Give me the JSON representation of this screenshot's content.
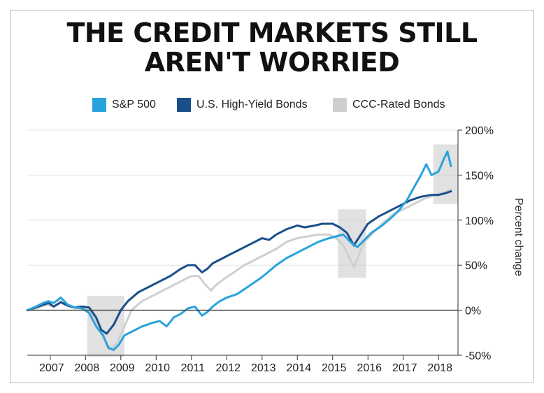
{
  "chart_data": {
    "type": "line",
    "title": "THE CREDIT MARKETS STILL\nAREN'T WORRIED",
    "ylabel": "Percent change",
    "xlabel": "",
    "xlim": [
      2006.35,
      2018.55
    ],
    "ylim": [
      -50,
      200
    ],
    "x_ticks": [
      2007,
      2008,
      2009,
      2010,
      2011,
      2012,
      2013,
      2014,
      2015,
      2016,
      2017,
      2018
    ],
    "x_tick_labels": [
      "2007",
      "2008",
      "2009",
      "2010",
      "2011",
      "2012",
      "2013",
      "2014",
      "2015",
      "2016",
      "2017",
      "2018"
    ],
    "y_ticks": [
      -50,
      0,
      50,
      100,
      150,
      200
    ],
    "y_tick_labels": [
      "-50%",
      "0%",
      "50%",
      "100%",
      "150%",
      "200%"
    ],
    "legend_placement": "top-center",
    "grid": "horizontal",
    "zero_line": true,
    "series": [
      {
        "name": "S&P 500",
        "color": "#29a3dc",
        "x": [
          2006.35,
          2006.6,
          2006.8,
          2006.95,
          2007.1,
          2007.3,
          2007.5,
          2007.7,
          2007.9,
          2008.1,
          2008.3,
          2008.5,
          2008.65,
          2008.8,
          2008.95,
          2009.1,
          2009.3,
          2009.6,
          2009.9,
          2010.1,
          2010.3,
          2010.5,
          2010.7,
          2010.9,
          2011.1,
          2011.3,
          2011.45,
          2011.6,
          2011.8,
          2012.0,
          2012.3,
          2012.6,
          2012.9,
          2013.1,
          2013.4,
          2013.7,
          2014.0,
          2014.3,
          2014.6,
          2014.9,
          2015.1,
          2015.3,
          2015.55,
          2015.7,
          2015.9,
          2016.1,
          2016.4,
          2016.7,
          2016.9,
          2017.1,
          2017.3,
          2017.5,
          2017.65,
          2017.8,
          2018.0,
          2018.15,
          2018.25,
          2018.35
        ],
        "y": [
          0,
          4,
          8,
          10,
          8,
          14,
          6,
          3,
          2,
          -3,
          -18,
          -28,
          -42,
          -44,
          -38,
          -28,
          -24,
          -18,
          -14,
          -12,
          -18,
          -8,
          -4,
          2,
          4,
          -6,
          -2,
          4,
          10,
          14,
          18,
          26,
          34,
          40,
          50,
          58,
          64,
          70,
          76,
          80,
          82,
          84,
          74,
          70,
          78,
          86,
          94,
          104,
          112,
          122,
          136,
          150,
          162,
          150,
          154,
          168,
          176,
          160
        ]
      },
      {
        "name": "U.S. High-Yield Bonds",
        "color": "#1b4f8a",
        "x": [
          2006.35,
          2006.6,
          2006.8,
          2006.95,
          2007.1,
          2007.3,
          2007.5,
          2007.7,
          2007.9,
          2008.1,
          2008.3,
          2008.45,
          2008.6,
          2008.8,
          2009.0,
          2009.2,
          2009.5,
          2009.8,
          2010.1,
          2010.4,
          2010.7,
          2010.9,
          2011.1,
          2011.3,
          2011.45,
          2011.6,
          2011.8,
          2012.1,
          2012.4,
          2012.7,
          2013.0,
          2013.2,
          2013.4,
          2013.7,
          2014.0,
          2014.2,
          2014.5,
          2014.7,
          2015.0,
          2015.2,
          2015.4,
          2015.6,
          2015.8,
          2016.0,
          2016.3,
          2016.6,
          2016.9,
          2017.2,
          2017.5,
          2017.8,
          2018.0,
          2018.2,
          2018.35
        ],
        "y": [
          0,
          3,
          6,
          8,
          4,
          9,
          5,
          3,
          4,
          3,
          -8,
          -22,
          -26,
          -16,
          0,
          10,
          20,
          26,
          32,
          38,
          46,
          50,
          50,
          42,
          46,
          52,
          56,
          62,
          68,
          74,
          80,
          78,
          84,
          90,
          94,
          92,
          94,
          96,
          96,
          92,
          86,
          72,
          84,
          96,
          104,
          110,
          116,
          122,
          126,
          128,
          128,
          130,
          132
        ]
      },
      {
        "name": "CCC-Rated Bonds",
        "color": "#cfcfcf",
        "x": [
          2006.35,
          2006.6,
          2006.8,
          2006.95,
          2007.1,
          2007.3,
          2007.5,
          2007.7,
          2007.9,
          2008.1,
          2008.3,
          2008.45,
          2008.6,
          2008.75,
          2008.9,
          2009.1,
          2009.3,
          2009.6,
          2009.9,
          2010.2,
          2010.5,
          2010.8,
          2011.0,
          2011.2,
          2011.4,
          2011.55,
          2011.7,
          2011.9,
          2012.2,
          2012.5,
          2012.8,
          2013.1,
          2013.4,
          2013.7,
          2014.0,
          2014.3,
          2014.6,
          2014.9,
          2015.1,
          2015.3,
          2015.5,
          2015.6,
          2015.75,
          2015.9,
          2016.1,
          2016.4,
          2016.7,
          2017.0,
          2017.3,
          2017.6,
          2017.9,
          2018.1,
          2018.35
        ],
        "y": [
          0,
          2,
          5,
          6,
          4,
          8,
          5,
          2,
          3,
          0,
          -12,
          -26,
          -38,
          -42,
          -36,
          -18,
          0,
          10,
          16,
          22,
          28,
          34,
          38,
          38,
          28,
          22,
          28,
          34,
          42,
          50,
          56,
          62,
          68,
          76,
          80,
          82,
          84,
          84,
          80,
          72,
          56,
          48,
          62,
          76,
          84,
          96,
          106,
          112,
          118,
          124,
          128,
          130,
          134
        ]
      }
    ],
    "highlight_regions": [
      {
        "x": [
          2008.05,
          2009.1
        ],
        "y": [
          -52,
          16
        ]
      },
      {
        "x": [
          2015.15,
          2015.95
        ],
        "y": [
          36,
          112
        ]
      },
      {
        "x": [
          2017.85,
          2018.55
        ],
        "y": [
          118,
          184
        ]
      }
    ]
  },
  "legend": [
    {
      "label": "S&P 500",
      "color": "#29a3dc"
    },
    {
      "label": "U.S. High-Yield Bonds",
      "color": "#1b4f8a"
    },
    {
      "label": "CCC-Rated Bonds",
      "color": "#cfcfcf"
    }
  ],
  "title_lines": [
    "THE CREDIT MARKETS STILL",
    "AREN'T WORRIED"
  ]
}
